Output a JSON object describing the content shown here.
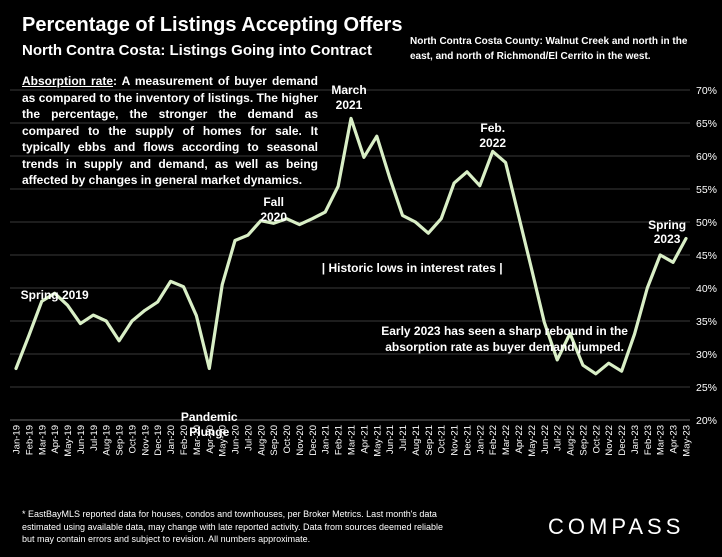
{
  "header": {
    "title": "Percentage of Listings Accepting Offers",
    "subtitle": "North Contra Costa: Listings Going into Contract",
    "region_note": "North Contra Costa County: Walnut Creek and north in the east, and north of Richmond/El Cerrito in the west."
  },
  "definition": {
    "term": "Absorption rate",
    "text": ":  A measurement of buyer demand as compared to the inventory of listings. The higher the percentage, the stronger the demand as compared to the supply of homes for sale. It typically ebbs and flows according to seasonal trends in supply and demand, as well as being affected by changes in general market dynamics."
  },
  "footnote": "* EastBayMLS reported data for houses, condos and townhouses, per Broker Metrics. Last month's data estimated using available data, may change with late reported activity. Data from sources deemed reliable but may contain errors and subject to revision. All numbers approximate.",
  "brand": "COMPASS",
  "chart_data": {
    "type": "line",
    "x": [
      "Jan-19",
      "Feb-19",
      "Mar-19",
      "Apr-19",
      "May-19",
      "Jun-19",
      "Jul-19",
      "Aug-19",
      "Sep-19",
      "Oct-19",
      "Nov-19",
      "Dec-19",
      "Jan-20",
      "Feb-20",
      "Mar-20",
      "Apr-20",
      "May-20",
      "Jun-20",
      "Jul-20",
      "Aug-20",
      "Sep-20",
      "Oct-20",
      "Nov-20",
      "Dec-20",
      "Jan-21",
      "Feb-21",
      "Mar-21",
      "Apr-21",
      "May-21",
      "Jun-21",
      "Jul-21",
      "Aug-21",
      "Sep-21",
      "Oct-21",
      "Nov-21",
      "Dec-21",
      "Jan-22",
      "Feb-22",
      "Mar-22",
      "Apr-22",
      "May-22",
      "Jun-22",
      "Jul-22",
      "Aug-22",
      "Sep-22",
      "Oct-22",
      "Nov-22",
      "Dec-22",
      "Jan-23",
      "Feb-23",
      "Mar-23",
      "Apr-23",
      "May-23"
    ],
    "series": [
      {
        "values": [
          27.8,
          32.8,
          38.0,
          39.2,
          37.4,
          34.6,
          35.9,
          35.0,
          32.0,
          35.0,
          36.6,
          37.9,
          41.0,
          40.2,
          35.8,
          27.8,
          40.5,
          47.2,
          48.0,
          50.2,
          49.8,
          50.5,
          49.6,
          50.5,
          51.5,
          55.4,
          65.7,
          59.8,
          63.0,
          56.7,
          51.0,
          50.0,
          48.3,
          50.5,
          55.9,
          57.6,
          55.5,
          60.7,
          59.0,
          51.0,
          43.0,
          34.8,
          29.1,
          33.1,
          28.3,
          27.0,
          28.6,
          27.4,
          33.0,
          40.0,
          45.0,
          43.9,
          47.5
        ]
      }
    ],
    "y_range": [
      20,
      70
    ],
    "y_ticks": [
      "20%",
      "25%",
      "30%",
      "35%",
      "40%",
      "45%",
      "50%",
      "55%",
      "60%",
      "65%",
      "70%"
    ],
    "y_axis_position": "right",
    "grid": true,
    "annotations": [
      {
        "label": [
          "Spring 2019"
        ],
        "x": "Apr-19"
      },
      {
        "label": [
          "Pandemic",
          "Plunge"
        ],
        "x": "Apr-20"
      },
      {
        "label": [
          "Fall",
          "2020"
        ],
        "x": "Sep-20"
      },
      {
        "label": [
          "March",
          "2021"
        ],
        "x": "Mar-21"
      },
      {
        "label": [
          "Feb.",
          "2022"
        ],
        "x": "Feb-22"
      },
      {
        "label": [
          "Spring",
          "2023"
        ],
        "x": "Apr-23"
      },
      {
        "label": [
          "| Historic lows in interest rates |"
        ],
        "x": "Oct-21"
      },
      {
        "label": [
          "Early 2023 has seen a sharp rebound in the",
          "absorption rate as buyer demand jumped."
        ],
        "x": "Mar-22"
      }
    ],
    "line_color": "#d9efc6"
  }
}
